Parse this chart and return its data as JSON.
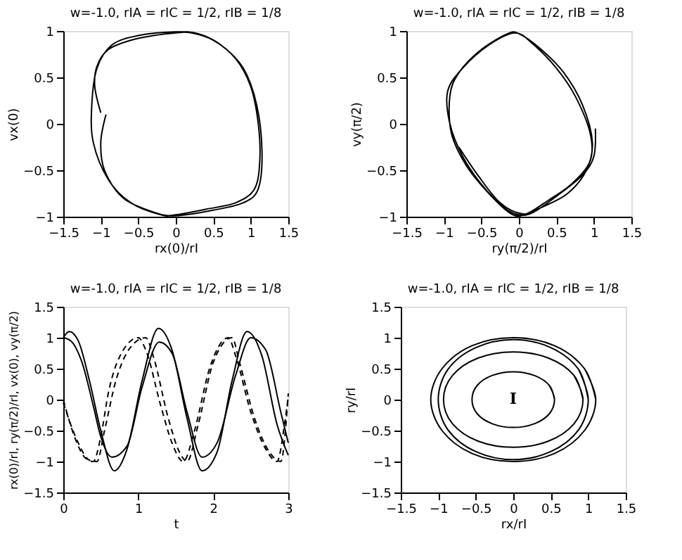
{
  "chart_data": [
    {
      "type": "line",
      "title": "w=-1.0,  rIA = rIC = 1/2, rIB = 1/8",
      "xlabel": "rx(0)/rI",
      "ylabel": "vx(0)",
      "xlim": [
        -1.5,
        1.5
      ],
      "xticks": [
        -1.5,
        -1,
        -0.5,
        0,
        0.5,
        1,
        1.5
      ],
      "ylim": [
        -1,
        1
      ],
      "yticks": [
        -1,
        -0.5,
        0,
        0.5,
        1
      ],
      "grid": false,
      "series": [
        {
          "color": "#000000",
          "line_style": "solid",
          "x": [
            -1,
            -1.08,
            -1.05,
            -0.9,
            -0.6,
            -0.3,
            0,
            0.2,
            0.5,
            0.8,
            1.0,
            1.1,
            1.12,
            1.05,
            0.8,
            0.4,
            0,
            -0.2,
            -0.6,
            -0.9,
            -1.1,
            -1.12,
            -1.05,
            -0.85,
            -0.5,
            0,
            0.3,
            0.6,
            0.9,
            1.08,
            1.15,
            1.1,
            0.9,
            0.5,
            0,
            -0.3,
            -0.7,
            -0.95,
            -1.0,
            -0.93
          ],
          "values": [
            0.12,
            0.4,
            0.62,
            0.8,
            0.9,
            0.95,
            0.98,
            0.98,
            0.9,
            0.7,
            0.4,
            0,
            -0.4,
            -0.7,
            -0.85,
            -0.92,
            -0.98,
            -0.98,
            -0.85,
            -0.6,
            -0.2,
            0.2,
            0.6,
            0.85,
            0.95,
            0.99,
            0.97,
            0.85,
            0.6,
            0.2,
            -0.3,
            -0.7,
            -0.85,
            -0.93,
            -0.99,
            -0.95,
            -0.8,
            -0.5,
            -0.2,
            0.1
          ]
        }
      ]
    },
    {
      "type": "line",
      "title": "w=-1.0,  rIA = rIC = 1/2, rIB = 1/8",
      "xlabel": "ry(π/2)/rI",
      "ylabel": "vy(π/2)",
      "xlim": [
        -1.5,
        1.5
      ],
      "xticks": [
        -1.5,
        -1,
        -0.5,
        0,
        0.5,
        1,
        1.5
      ],
      "ylim": [
        -1,
        1
      ],
      "yticks": [
        -1,
        -0.5,
        0,
        0.5,
        1
      ],
      "grid": false,
      "series": [
        {
          "color": "#000000",
          "line_style": "solid",
          "x": [
            1.02,
            1.0,
            0.85,
            0.55,
            0.2,
            0,
            -0.2,
            -0.5,
            -0.75,
            -0.92,
            -0.95,
            -0.75,
            -0.4,
            -0.05,
            0.2,
            0.5,
            0.75,
            0.95,
            0.95,
            0.7,
            0.4,
            0.1,
            -0.1,
            -0.4,
            -0.7,
            -0.9,
            -0.92,
            -0.8,
            -0.5,
            -0.15,
            0,
            0.3,
            0.6,
            0.85,
            0.98,
            0.9,
            0.65,
            0.3,
            0.05,
            -0.25,
            -0.55,
            -0.8
          ],
          "values": [
            -0.05,
            -0.35,
            -0.55,
            -0.75,
            -0.95,
            -0.98,
            -0.9,
            -0.65,
            -0.35,
            0,
            0.35,
            0.6,
            0.85,
            0.98,
            0.85,
            0.6,
            0.3,
            -0.1,
            -0.4,
            -0.65,
            -0.82,
            -0.97,
            -0.97,
            -0.75,
            -0.45,
            -0.1,
            0.3,
            0.55,
            0.8,
            0.97,
            0.97,
            0.8,
            0.55,
            0.2,
            -0.2,
            -0.5,
            -0.75,
            -0.9,
            -0.97,
            -0.85,
            -0.55,
            -0.25
          ]
        }
      ]
    },
    {
      "type": "line",
      "title": "w=-1.0,  rIA = rIC = 1/2, rIB = 1/8",
      "xlabel": "t",
      "ylabel": "rx(0)/rI, ry(π/2)/rI, vx(0), vy(π/2)",
      "xlim": [
        0,
        3
      ],
      "xticks": [
        0,
        1,
        2,
        3
      ],
      "ylim": [
        -1.5,
        1.5
      ],
      "yticks": [
        -1.5,
        -1,
        -0.5,
        0,
        0.5,
        1,
        1.5
      ],
      "grid": false,
      "series": [
        {
          "color": "#000000",
          "line_style": "solid",
          "x": [
            0,
            0.08,
            0.2,
            0.35,
            0.5,
            0.68,
            0.85,
            1.05,
            1.27,
            1.45,
            1.65,
            1.85,
            2.05,
            2.25,
            2.45,
            2.65,
            2.85,
            3.0
          ],
          "values": [
            1.0,
            1.1,
            0.95,
            0.3,
            -0.5,
            -1.15,
            -0.8,
            0.3,
            1.15,
            0.8,
            -0.3,
            -1.15,
            -0.85,
            0.3,
            1.1,
            0.7,
            -0.4,
            -0.9
          ]
        },
        {
          "color": "#000000",
          "line_style": "solid",
          "x": [
            0,
            0.1,
            0.25,
            0.4,
            0.5,
            0.65,
            0.85,
            1.05,
            1.28,
            1.45,
            1.65,
            1.85,
            2.05,
            2.3,
            2.5,
            2.7,
            2.9,
            3.0
          ],
          "values": [
            1.0,
            0.95,
            0.6,
            -0.1,
            -0.6,
            -0.93,
            -0.75,
            0.2,
            0.93,
            0.75,
            -0.2,
            -0.93,
            -0.7,
            0.4,
            1.0,
            0.8,
            -0.2,
            -0.7
          ]
        },
        {
          "color": "#000000",
          "line_style": "dashed",
          "x": [
            0,
            0.15,
            0.3,
            0.4,
            0.5,
            0.6,
            0.8,
            1.0,
            1.1,
            1.3,
            1.45,
            1.6,
            1.75,
            1.95,
            2.2,
            2.3,
            2.5,
            2.7,
            2.85,
            2.95,
            3.0
          ],
          "values": [
            0,
            -0.6,
            -0.95,
            -1.0,
            -0.6,
            0.1,
            0.8,
            1.0,
            0.8,
            -0.1,
            -0.7,
            -1.0,
            -0.5,
            0.5,
            1.0,
            0.7,
            -0.2,
            -0.8,
            -1.0,
            -0.4,
            0.05
          ]
        },
        {
          "color": "#000000",
          "line_style": "dashed",
          "x": [
            0,
            0.2,
            0.35,
            0.45,
            0.55,
            0.7,
            0.9,
            1.1,
            1.2,
            1.4,
            1.55,
            1.65,
            1.8,
            2.0,
            2.25,
            2.35,
            2.55,
            2.75,
            2.9,
            3.0
          ],
          "values": [
            -0.05,
            -0.7,
            -0.98,
            -1.0,
            -0.5,
            0.3,
            0.85,
            1.0,
            0.7,
            -0.3,
            -0.85,
            -1.0,
            -0.4,
            0.6,
            1.0,
            0.6,
            -0.3,
            -0.85,
            -1.0,
            0.1
          ]
        }
      ]
    },
    {
      "type": "line",
      "title": "w=-1.0,  rIA = rIC = 1/2, rIB = 1/8",
      "xlabel": "rx/rI",
      "ylabel": "ry/rI",
      "xlim": [
        -1.5,
        1.5
      ],
      "xticks": [
        -1.5,
        -1,
        -0.5,
        0,
        0.5,
        1,
        1.5
      ],
      "ylim": [
        -1.5,
        1.5
      ],
      "yticks": [
        -1.5,
        -1,
        -0.5,
        0,
        0.5,
        1,
        1.5
      ],
      "grid": false,
      "series": [
        {
          "color": "#000000",
          "line_style": "solid",
          "x": [
            1.1,
            0.95,
            0.55,
            0,
            -0.55,
            -0.95,
            -1.1,
            -0.95,
            -0.55,
            0,
            0.55,
            0.95,
            1.1,
            0.95
          ],
          "values": [
            0,
            0.5,
            0.87,
            1,
            0.87,
            0.5,
            0,
            -0.5,
            -0.87,
            -1,
            -0.87,
            -0.5,
            0,
            0.5
          ]
        },
        {
          "color": "#000000",
          "line_style": "solid",
          "x": [
            1,
            0.87,
            0.5,
            0,
            -0.5,
            -0.87,
            -1,
            -0.87,
            -0.5,
            0,
            0.5,
            0.87,
            1,
            0.87
          ],
          "values": [
            0,
            0.49,
            0.84,
            0.97,
            0.84,
            0.49,
            0,
            -0.49,
            -0.84,
            -0.97,
            -0.84,
            -0.49,
            0,
            0.49
          ]
        },
        {
          "color": "#000000",
          "line_style": "solid",
          "x": [
            0.93,
            0.81,
            0.47,
            0,
            -0.47,
            -0.81,
            -0.93,
            -0.81,
            -0.47,
            0,
            0.47,
            0.81,
            0.93,
            0.81
          ],
          "values": [
            0,
            0.39,
            0.67,
            0.77,
            0.67,
            0.39,
            0,
            -0.39,
            -0.67,
            -0.77,
            -0.67,
            -0.39,
            0,
            0.39
          ]
        },
        {
          "color": "#000000",
          "line_style": "solid",
          "x": [
            0.55,
            0.48,
            0.28,
            0,
            -0.28,
            -0.48,
            -0.55,
            -0.48,
            -0.28,
            0,
            0.28,
            0.48,
            0.55,
            0.48
          ],
          "values": [
            0,
            0.23,
            0.39,
            0.45,
            0.39,
            0.23,
            0,
            -0.23,
            -0.39,
            -0.45,
            -0.39,
            -0.23,
            0,
            0.23
          ]
        }
      ],
      "annotations": [
        "I"
      ]
    }
  ]
}
